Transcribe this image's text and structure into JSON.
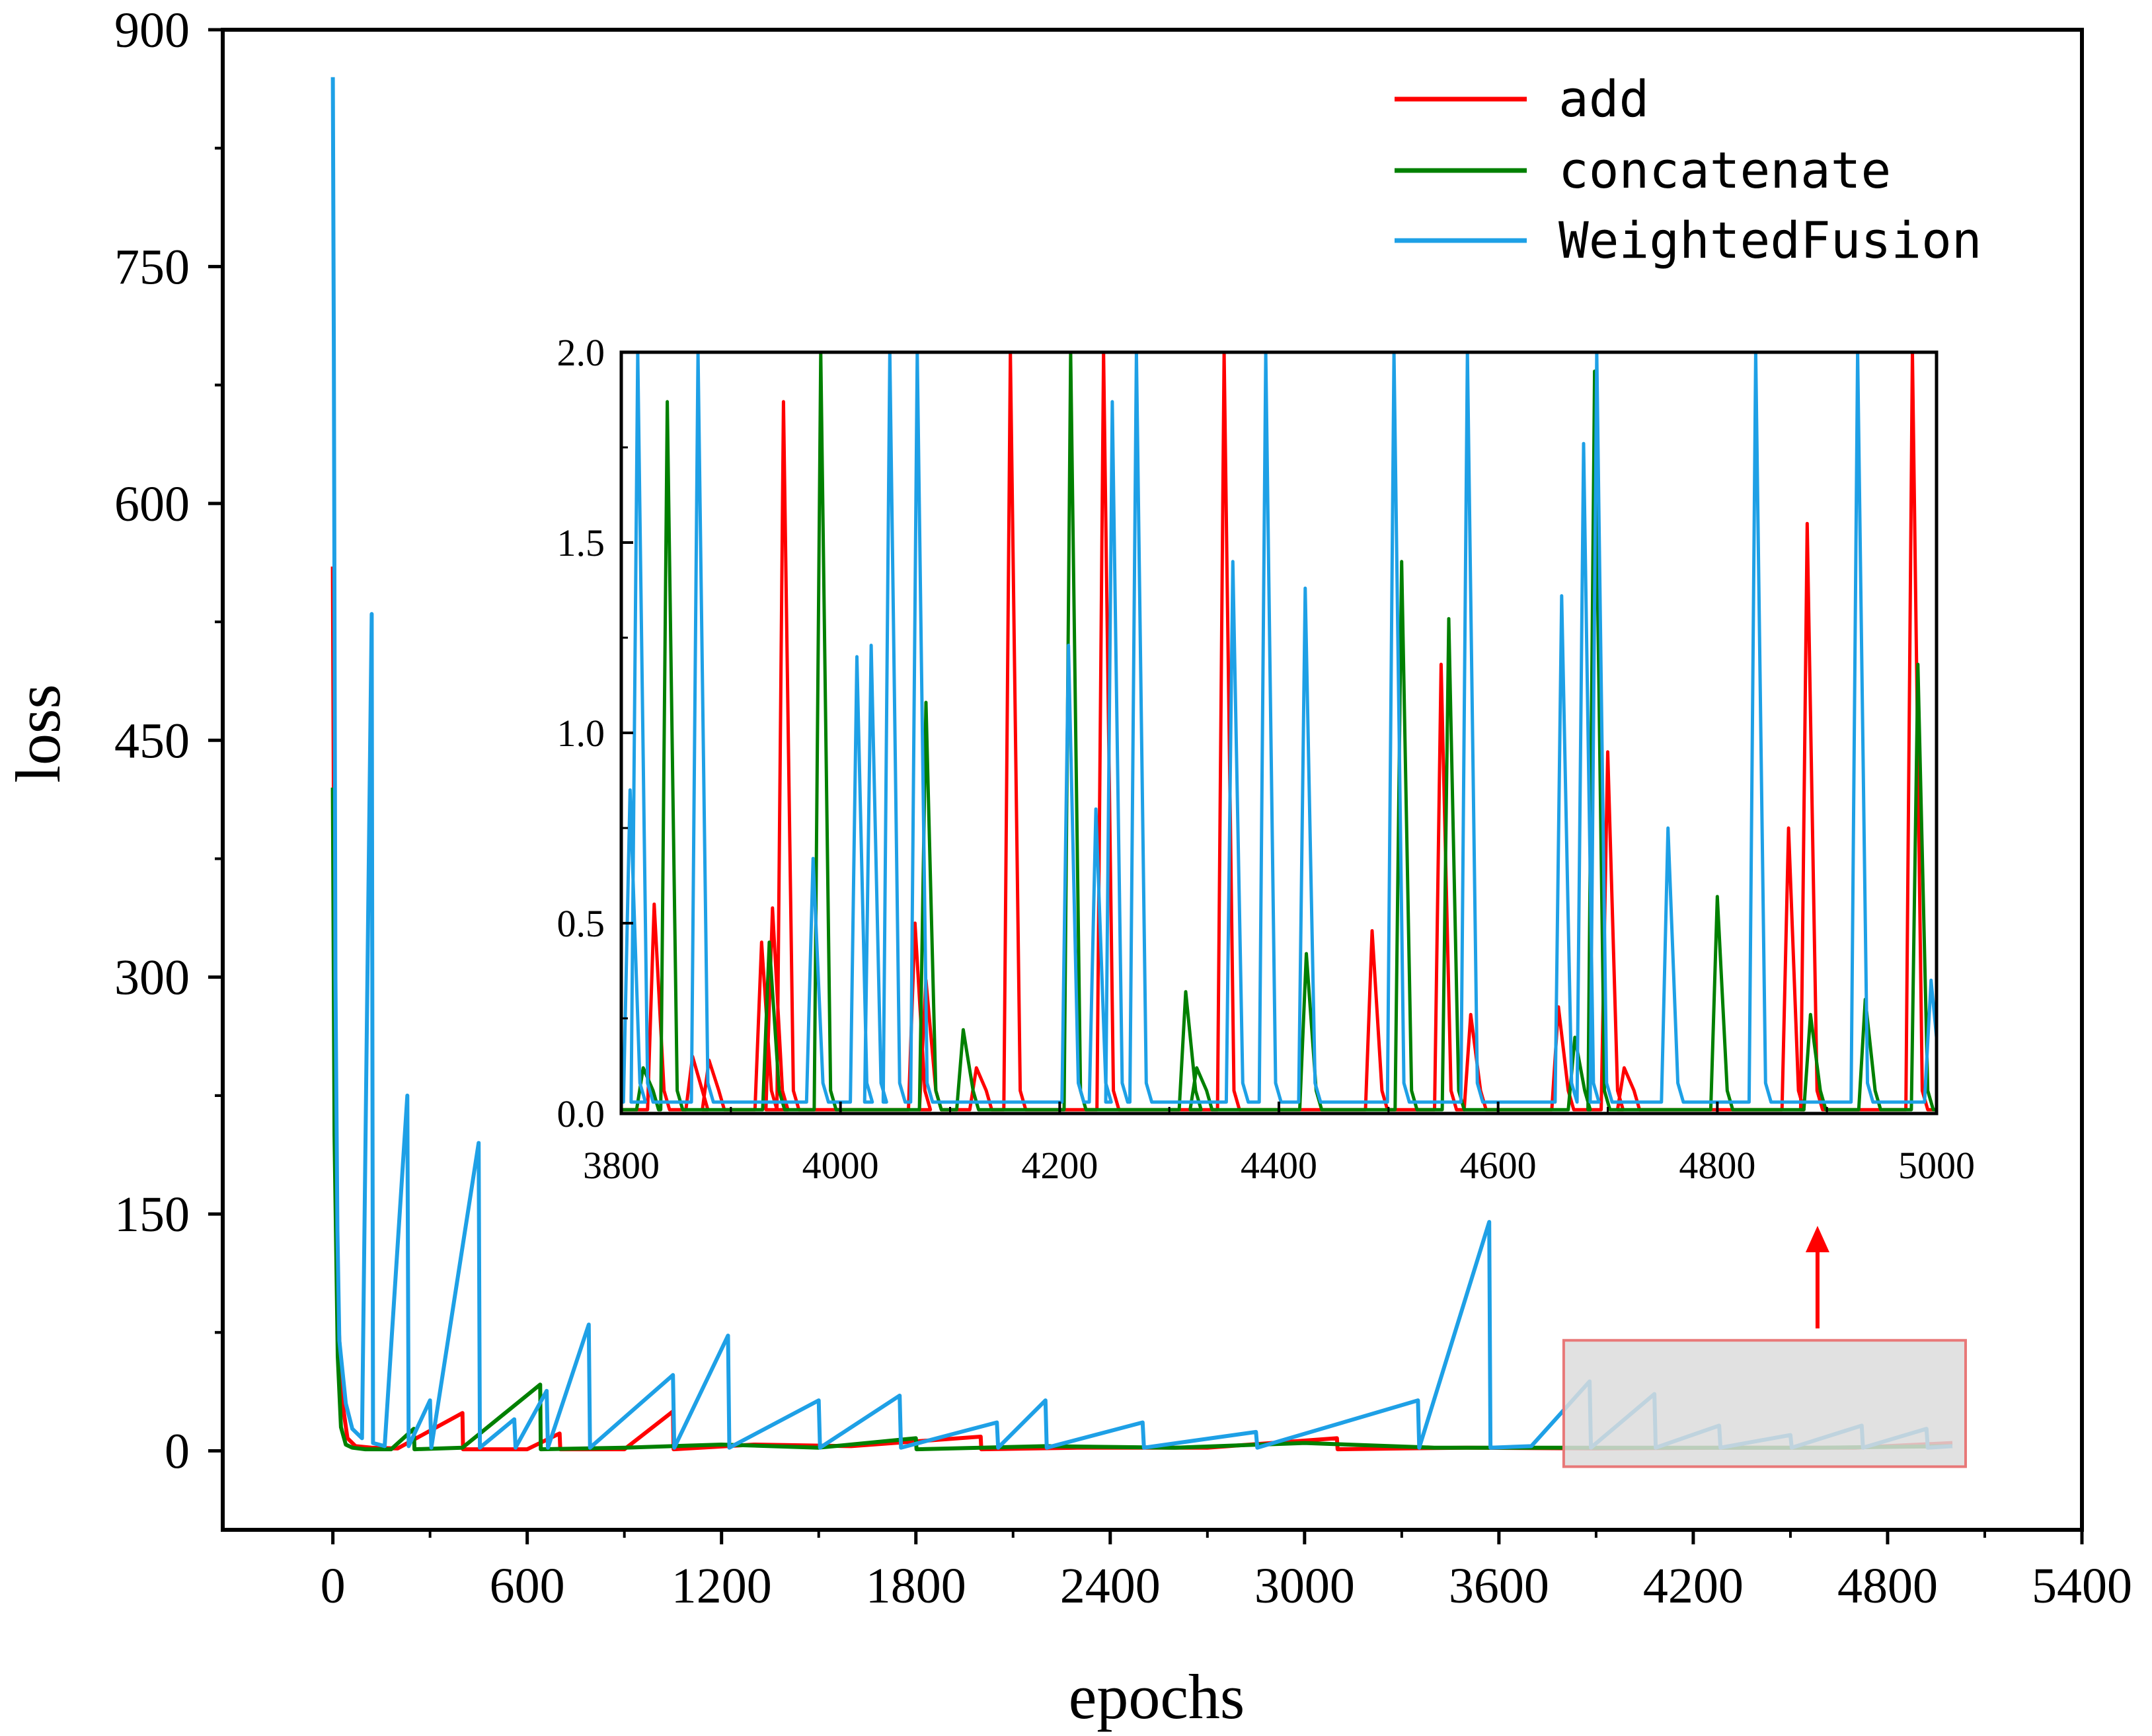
{
  "chart_data": [
    {
      "type": "line",
      "role": "main",
      "xlabel": "epochs",
      "ylabel": "loss",
      "xlim": [
        -340,
        5400
      ],
      "ylim": [
        -50,
        900
      ],
      "xticks": [
        0,
        600,
        1200,
        1800,
        2400,
        3000,
        3600,
        4200,
        4800,
        5400
      ],
      "xtick_labels": [
        "0",
        "600",
        "1200",
        "1800",
        "2400",
        "3000",
        "3600",
        "4200",
        "4800",
        "5400"
      ],
      "yticks": [
        0,
        150,
        300,
        450,
        600,
        750,
        900
      ],
      "ytick_labels": [
        "0",
        "150",
        "300",
        "450",
        "600",
        "750",
        "900"
      ],
      "legend_position": "top-right",
      "series": [
        {
          "name": "add",
          "color": "#ff0000",
          "points": [
            [
              0,
              560
            ],
            [
              5,
              300
            ],
            [
              15,
              90
            ],
            [
              30,
              30
            ],
            [
              45,
              8
            ],
            [
              70,
              3
            ],
            [
              120,
              2
            ],
            [
              200,
              1.5
            ],
            [
              400,
              24
            ],
            [
              402,
              1
            ],
            [
              600,
              1
            ],
            [
              700,
              11
            ],
            [
              702,
              1
            ],
            [
              900,
              1
            ],
            [
              1050,
              25
            ],
            [
              1052,
              1
            ],
            [
              1300,
              4
            ],
            [
              1600,
              3
            ],
            [
              2000,
              9
            ],
            [
              2002,
              1
            ],
            [
              2300,
              2
            ],
            [
              2700,
              2
            ],
            [
              3100,
              8
            ],
            [
              3102,
              1
            ],
            [
              3500,
              2
            ],
            [
              3900,
              1.5
            ],
            [
              4300,
              2
            ],
            [
              4700,
              2
            ],
            [
              5000,
              5
            ]
          ]
        },
        {
          "name": "concatenate",
          "color": "#008000",
          "points": [
            [
              0,
              420
            ],
            [
              5,
              200
            ],
            [
              15,
              60
            ],
            [
              25,
              15
            ],
            [
              40,
              4
            ],
            [
              60,
              2
            ],
            [
              100,
              1
            ],
            [
              180,
              1
            ],
            [
              250,
              14
            ],
            [
              252,
              1
            ],
            [
              400,
              2
            ],
            [
              640,
              42
            ],
            [
              642,
              1
            ],
            [
              900,
              2
            ],
            [
              1200,
              4
            ],
            [
              1500,
              2
            ],
            [
              1800,
              8
            ],
            [
              1802,
              1
            ],
            [
              2200,
              3
            ],
            [
              2600,
              2
            ],
            [
              3000,
              5
            ],
            [
              3400,
              2
            ],
            [
              3800,
              2
            ],
            [
              4200,
              2
            ],
            [
              4600,
              2
            ],
            [
              5000,
              3
            ]
          ]
        },
        {
          "name": "WeightedFusion",
          "color": "#1ea0e6",
          "points": [
            [
              0,
              870
            ],
            [
              3,
              700
            ],
            [
              8,
              300
            ],
            [
              14,
              140
            ],
            [
              20,
              70
            ],
            [
              30,
              50
            ],
            [
              40,
              30
            ],
            [
              60,
              14
            ],
            [
              90,
              8
            ],
            [
              120,
              530
            ],
            [
              124,
              5
            ],
            [
              160,
              3
            ],
            [
              230,
              225
            ],
            [
              234,
              3
            ],
            [
              300,
              32
            ],
            [
              304,
              2
            ],
            [
              450,
              195
            ],
            [
              454,
              2
            ],
            [
              560,
              20
            ],
            [
              564,
              2
            ],
            [
              660,
              38
            ],
            [
              664,
              2
            ],
            [
              790,
              80
            ],
            [
              794,
              2
            ],
            [
              1050,
              48
            ],
            [
              1054,
              2
            ],
            [
              1220,
              73
            ],
            [
              1224,
              2
            ],
            [
              1500,
              32
            ],
            [
              1504,
              2
            ],
            [
              1750,
              35
            ],
            [
              1754,
              2
            ],
            [
              2050,
              18
            ],
            [
              2054,
              2
            ],
            [
              2200,
              32
            ],
            [
              2204,
              2
            ],
            [
              2500,
              18
            ],
            [
              2504,
              2
            ],
            [
              2850,
              12
            ],
            [
              2854,
              2
            ],
            [
              3350,
              32
            ],
            [
              3354,
              2
            ],
            [
              3570,
              145
            ],
            [
              3574,
              2
            ],
            [
              3700,
              3
            ],
            [
              3880,
              44
            ],
            [
              3884,
              2
            ],
            [
              4080,
              36
            ],
            [
              4084,
              2
            ],
            [
              4280,
              16
            ],
            [
              4284,
              2
            ],
            [
              4500,
              10
            ],
            [
              4504,
              2
            ],
            [
              4720,
              16
            ],
            [
              4724,
              2
            ],
            [
              4920,
              14
            ],
            [
              4924,
              2
            ],
            [
              5000,
              3
            ]
          ]
        }
      ],
      "highlight_region": {
        "x": [
          3800,
          5000
        ],
        "y": [
          -10,
          70
        ]
      }
    },
    {
      "type": "line",
      "role": "inset",
      "xlim": [
        3800,
        5000
      ],
      "ylim": [
        0,
        2
      ],
      "xticks": [
        3800,
        4000,
        4200,
        4400,
        4600,
        4800,
        5000
      ],
      "xtick_labels": [
        "3800",
        "4000",
        "4200",
        "4400",
        "4600",
        "4800",
        "5000"
      ],
      "yticks": [
        0,
        0.5,
        1,
        1.5,
        2
      ],
      "ytick_labels": [
        "0.0",
        "0.5",
        "1.0",
        "1.5",
        "2.0"
      ],
      "series": [
        {
          "name": "add",
          "color": "#ff0000",
          "baseline": 0.01,
          "spikes": [
            [
              3830,
              0.55
            ],
            [
              3865,
              0.15
            ],
            [
              3880,
              0.14
            ],
            [
              3928,
              0.45
            ],
            [
              3938,
              0.54
            ],
            [
              3948,
              1.87
            ],
            [
              4068,
              0.5
            ],
            [
              4078,
              0.35
            ],
            [
              4124,
              0.12
            ],
            [
              4155,
              2.0
            ],
            [
              4240,
              2.0
            ],
            [
              4350,
              2.0
            ],
            [
              4485,
              0.48
            ],
            [
              4548,
              1.18
            ],
            [
              4575,
              0.26
            ],
            [
              4655,
              0.28
            ],
            [
              4700,
              0.95
            ],
            [
              4715,
              0.12
            ],
            [
              4865,
              0.75
            ],
            [
              4882,
              1.55
            ],
            [
              4978,
              2.0
            ]
          ]
        },
        {
          "name": "concatenate",
          "color": "#008000",
          "baseline": 0.01,
          "spikes": [
            [
              3820,
              0.12
            ],
            [
              3842,
              1.87
            ],
            [
              3935,
              0.45
            ],
            [
              3982,
              2.0
            ],
            [
              4078,
              1.08
            ],
            [
              4112,
              0.22
            ],
            [
              4210,
              2.0
            ],
            [
              4315,
              0.32
            ],
            [
              4325,
              0.12
            ],
            [
              4425,
              0.42
            ],
            [
              4512,
              1.45
            ],
            [
              4555,
              1.3
            ],
            [
              4670,
              0.2
            ],
            [
              4688,
              1.95
            ],
            [
              4800,
              0.57
            ],
            [
              4885,
              0.26
            ],
            [
              4935,
              0.3
            ],
            [
              4983,
              1.18
            ]
          ]
        },
        {
          "name": "WeightedFusion",
          "color": "#1ea0e6",
          "baseline": 0.03,
          "spikes": [
            [
              3808,
              0.85
            ],
            [
              3815,
              2.0
            ],
            [
              3870,
              2.0
            ],
            [
              3975,
              0.67
            ],
            [
              4015,
              1.2
            ],
            [
              4028,
              1.23
            ],
            [
              4045,
              2.0
            ],
            [
              4070,
              2.0
            ],
            [
              4208,
              1.23
            ],
            [
              4233,
              0.8
            ],
            [
              4248,
              1.87
            ],
            [
              4270,
              2.0
            ],
            [
              4358,
              1.45
            ],
            [
              4388,
              2.0
            ],
            [
              4424,
              1.38
            ],
            [
              4505,
              2.0
            ],
            [
              4572,
              2.0
            ],
            [
              4658,
              1.36
            ],
            [
              4678,
              1.76
            ],
            [
              4690,
              2.0
            ],
            [
              4755,
              0.75
            ],
            [
              4835,
              2.0
            ],
            [
              4928,
              2.0
            ],
            [
              4995,
              0.35
            ]
          ]
        }
      ]
    }
  ],
  "legend": [
    {
      "label": "add",
      "color": "#ff0000"
    },
    {
      "label": "concatenate",
      "color": "#008000"
    },
    {
      "label": "WeightedFusion",
      "color": "#1ea0e6"
    }
  ],
  "colors": {
    "axis": "#000000",
    "highlight_fill": "#dcdcdc",
    "highlight_stroke": "#e87878",
    "arrow": "#ff0000"
  }
}
